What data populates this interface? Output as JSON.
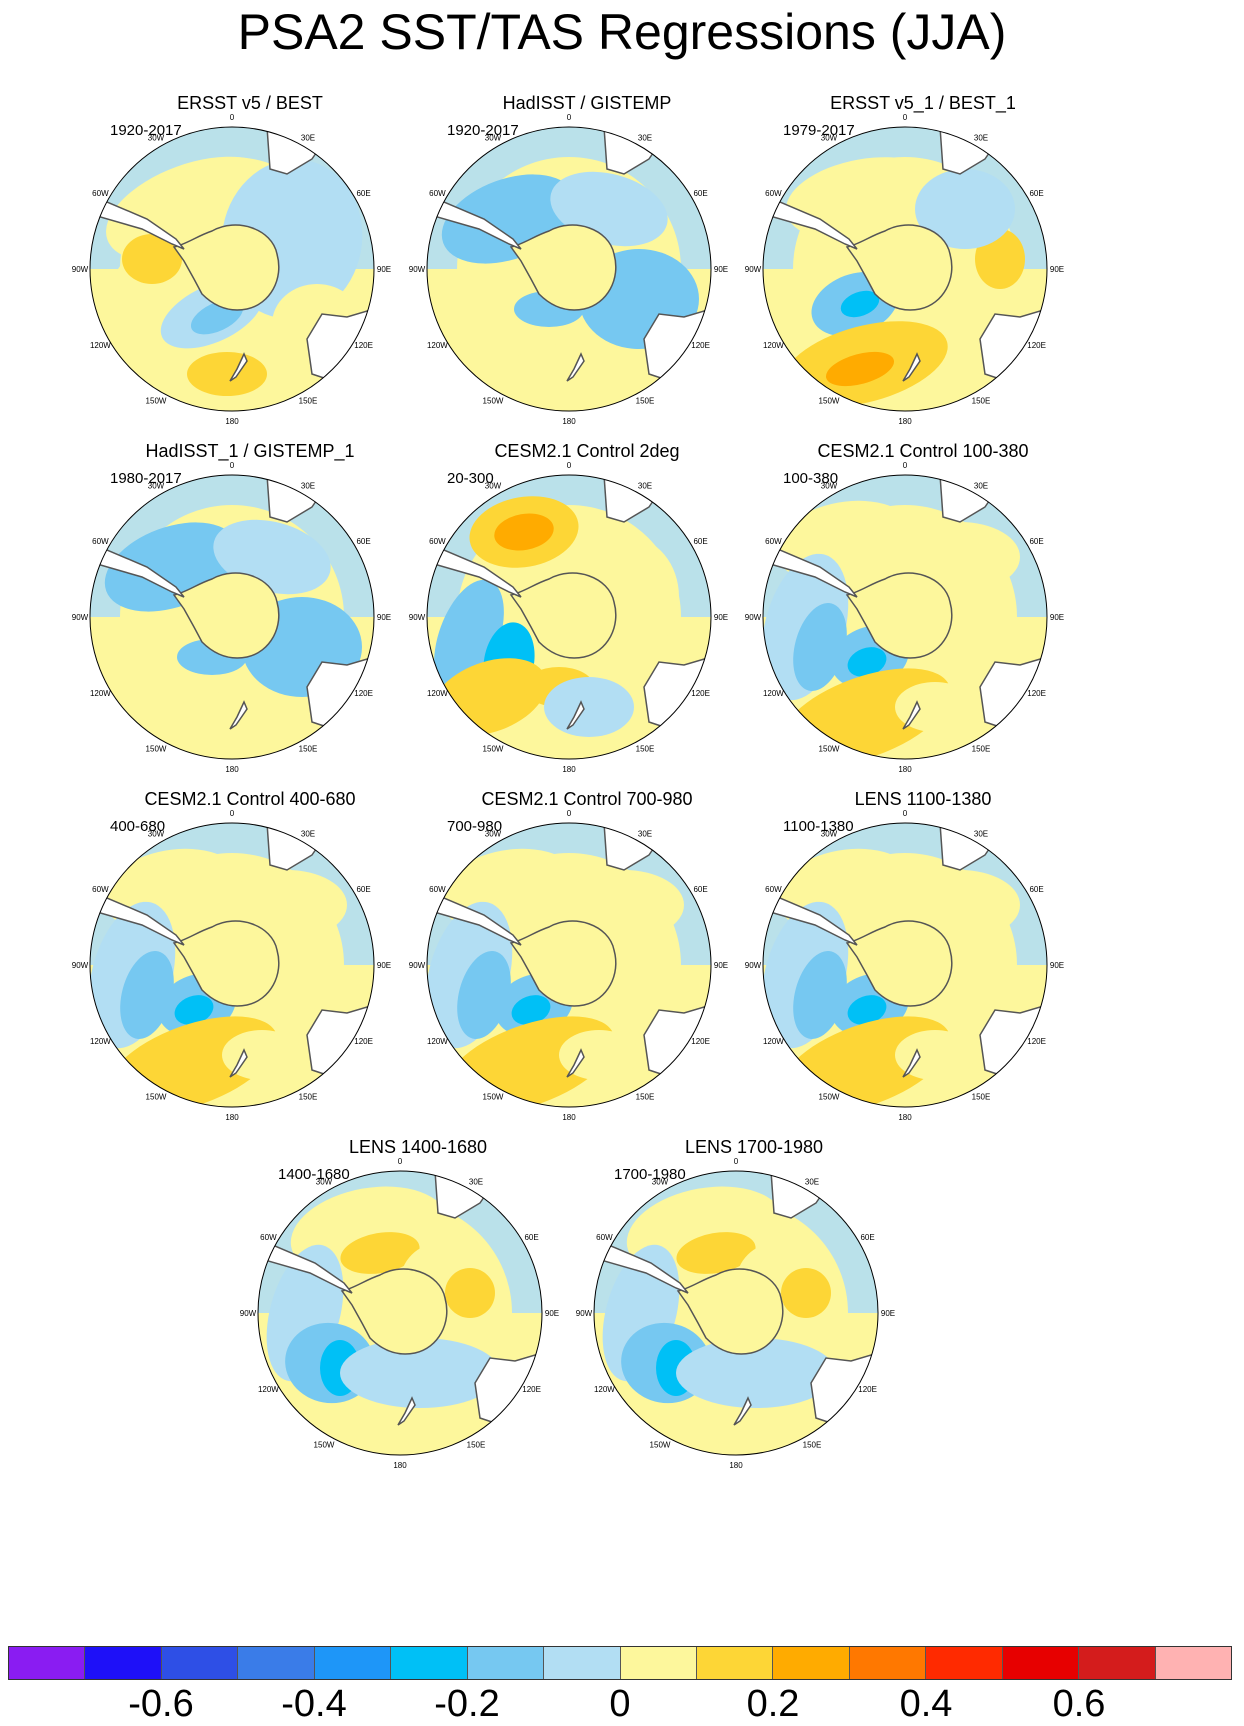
{
  "title": "PSA2 SST/TAS Regressions (JJA)",
  "panels": [
    {
      "title": "ERSST v5 / BEST",
      "years": "1920-2017"
    },
    {
      "title": "HadISST / GISTEMP",
      "years": "1920-2017"
    },
    {
      "title": "ERSST v5_1 / BEST_1",
      "years": "1979-2017"
    },
    {
      "title": "HadISST_1 / GISTEMP_1",
      "years": "1980-2017"
    },
    {
      "title": "CESM2.1 Control 2deg",
      "years": "20-300"
    },
    {
      "title": "CESM2.1 Control 100-380",
      "years": "100-380"
    },
    {
      "title": "CESM2.1 Control 400-680",
      "years": "400-680"
    },
    {
      "title": "CESM2.1 Control 700-980",
      "years": "700-980"
    },
    {
      "title": "LENS 1100-1380",
      "years": "1100-1380"
    },
    {
      "title": "LENS 1400-1680",
      "years": "1400-1680"
    },
    {
      "title": "LENS 1700-1980",
      "years": "1700-1980"
    }
  ],
  "longitude_labels": [
    "0",
    "30E",
    "60E",
    "90E",
    "120E",
    "150E",
    "180",
    "150W",
    "120W",
    "90W",
    "60W",
    "30W"
  ],
  "colorbar": {
    "colors": [
      "#8a1cf2",
      "#1e10f8",
      "#2e4fe6",
      "#3a7ce8",
      "#1e96f8",
      "#00c0f6",
      "#76c8f1",
      "#b2def3",
      "#fdf79c",
      "#fdd636",
      "#ffab00",
      "#ff7800",
      "#ff2a00",
      "#e70000",
      "#d41c1c",
      "#ffb2b2"
    ],
    "tick_labels": [
      "-0.6",
      "-0.4",
      "-0.2",
      "0",
      "0.2",
      "0.4",
      "0.6"
    ]
  }
}
